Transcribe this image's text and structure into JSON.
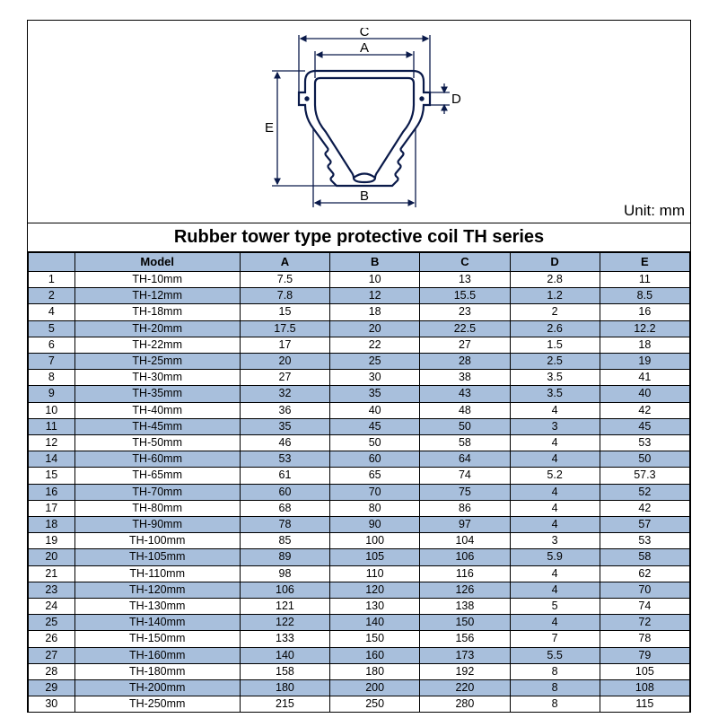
{
  "unit_label": "Unit: mm",
  "title": "Rubber tower type protective coil TH series",
  "diagram": {
    "labels": {
      "A": "A",
      "B": "B",
      "C": "C",
      "D": "D",
      "E": "E"
    },
    "stroke": "#0a1a4a",
    "fill": "#ffffff"
  },
  "table": {
    "headers": [
      "",
      "Model",
      "A",
      "B",
      "C",
      "D",
      "E"
    ],
    "header_bg": "#a8bfdc",
    "shaded_bg": "#a8bfdc",
    "rows": [
      {
        "idx": "1",
        "model": "TH-10mm",
        "A": "7.5",
        "B": "10",
        "C": "13",
        "D": "2.8",
        "E": "11",
        "shaded": false
      },
      {
        "idx": "2",
        "model": "TH-12mm",
        "A": "7.8",
        "B": "12",
        "C": "15.5",
        "D": "1.2",
        "E": "8.5",
        "shaded": true
      },
      {
        "idx": "4",
        "model": "TH-18mm",
        "A": "15",
        "B": "18",
        "C": "23",
        "D": "2",
        "E": "16",
        "shaded": false
      },
      {
        "idx": "5",
        "model": "TH-20mm",
        "A": "17.5",
        "B": "20",
        "C": "22.5",
        "D": "2.6",
        "E": "12.2",
        "shaded": true
      },
      {
        "idx": "6",
        "model": "TH-22mm",
        "A": "17",
        "B": "22",
        "C": "27",
        "D": "1.5",
        "E": "18",
        "shaded": false
      },
      {
        "idx": "7",
        "model": "TH-25mm",
        "A": "20",
        "B": "25",
        "C": "28",
        "D": "2.5",
        "E": "19",
        "shaded": true
      },
      {
        "idx": "8",
        "model": "TH-30mm",
        "A": "27",
        "B": "30",
        "C": "38",
        "D": "3.5",
        "E": "41",
        "shaded": false
      },
      {
        "idx": "9",
        "model": "TH-35mm",
        "A": "32",
        "B": "35",
        "C": "43",
        "D": "3.5",
        "E": "40",
        "shaded": true
      },
      {
        "idx": "10",
        "model": "TH-40mm",
        "A": "36",
        "B": "40",
        "C": "48",
        "D": "4",
        "E": "42",
        "shaded": false
      },
      {
        "idx": "11",
        "model": "TH-45mm",
        "A": "35",
        "B": "45",
        "C": "50",
        "D": "3",
        "E": "45",
        "shaded": true
      },
      {
        "idx": "12",
        "model": "TH-50mm",
        "A": "46",
        "B": "50",
        "C": "58",
        "D": "4",
        "E": "53",
        "shaded": false
      },
      {
        "idx": "14",
        "model": "TH-60mm",
        "A": "53",
        "B": "60",
        "C": "64",
        "D": "4",
        "E": "50",
        "shaded": true
      },
      {
        "idx": "15",
        "model": "TH-65mm",
        "A": "61",
        "B": "65",
        "C": "74",
        "D": "5.2",
        "E": "57.3",
        "shaded": false
      },
      {
        "idx": "16",
        "model": "TH-70mm",
        "A": "60",
        "B": "70",
        "C": "75",
        "D": "4",
        "E": "52",
        "shaded": true
      },
      {
        "idx": "17",
        "model": "TH-80mm",
        "A": "68",
        "B": "80",
        "C": "86",
        "D": "4",
        "E": "42",
        "shaded": false
      },
      {
        "idx": "18",
        "model": "TH-90mm",
        "A": "78",
        "B": "90",
        "C": "97",
        "D": "4",
        "E": "57",
        "shaded": true
      },
      {
        "idx": "19",
        "model": "TH-100mm",
        "A": "85",
        "B": "100",
        "C": "104",
        "D": "3",
        "E": "53",
        "shaded": false
      },
      {
        "idx": "20",
        "model": "TH-105mm",
        "A": "89",
        "B": "105",
        "C": "106",
        "D": "5.9",
        "E": "58",
        "shaded": true
      },
      {
        "idx": "21",
        "model": "TH-110mm",
        "A": "98",
        "B": "110",
        "C": "116",
        "D": "4",
        "E": "62",
        "shaded": false
      },
      {
        "idx": "23",
        "model": "TH-120mm",
        "A": "106",
        "B": "120",
        "C": "126",
        "D": "4",
        "E": "70",
        "shaded": true
      },
      {
        "idx": "24",
        "model": "TH-130mm",
        "A": "121",
        "B": "130",
        "C": "138",
        "D": "5",
        "E": "74",
        "shaded": false
      },
      {
        "idx": "25",
        "model": "TH-140mm",
        "A": "122",
        "B": "140",
        "C": "150",
        "D": "4",
        "E": "72",
        "shaded": true
      },
      {
        "idx": "26",
        "model": "TH-150mm",
        "A": "133",
        "B": "150",
        "C": "156",
        "D": "7",
        "E": "78",
        "shaded": false
      },
      {
        "idx": "27",
        "model": "TH-160mm",
        "A": "140",
        "B": "160",
        "C": "173",
        "D": "5.5",
        "E": "79",
        "shaded": true
      },
      {
        "idx": "28",
        "model": "TH-180mm",
        "A": "158",
        "B": "180",
        "C": "192",
        "D": "8",
        "E": "105",
        "shaded": false
      },
      {
        "idx": "29",
        "model": "TH-200mm",
        "A": "180",
        "B": "200",
        "C": "220",
        "D": "8",
        "E": "108",
        "shaded": true
      },
      {
        "idx": "30",
        "model": "TH-250mm",
        "A": "215",
        "B": "250",
        "C": "280",
        "D": "8",
        "E": "115",
        "shaded": false
      }
    ]
  }
}
